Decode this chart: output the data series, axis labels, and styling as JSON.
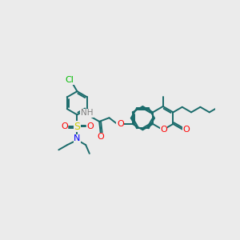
{
  "background_color": "#EBEBEB",
  "bond_color": "#1a6b6b",
  "atom_colors": {
    "N": "#0000FF",
    "O": "#FF0000",
    "S": "#CCCC00",
    "Cl": "#00BB00",
    "NH": "#808080"
  },
  "lw": 1.4,
  "r": 19,
  "figsize": [
    3.0,
    3.0
  ],
  "dpi": 100
}
